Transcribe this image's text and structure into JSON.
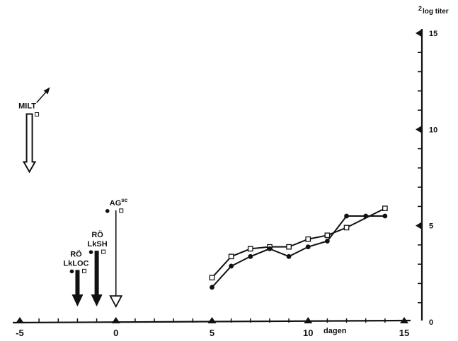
{
  "chart_data": {
    "type": "line",
    "title": "",
    "xlabel": "dagen",
    "ylabel_superscript": "2",
    "ylabel": "log titer",
    "xlim": [
      -5,
      15
    ],
    "ylim": [
      0,
      15
    ],
    "x_ticks": [
      -5,
      0,
      5,
      10,
      15
    ],
    "x_tick_labels": [
      "-5",
      "0",
      "5",
      "10",
      "15"
    ],
    "y_ticks": [
      0,
      5,
      10,
      15
    ],
    "y_tick_labels": [
      "0",
      "5",
      "10",
      "15"
    ],
    "grid": false,
    "series": [
      {
        "marker": "open-square",
        "x": [
          5,
          6,
          7,
          8,
          9,
          10,
          11,
          12,
          14
        ],
        "y": [
          2.3,
          3.4,
          3.8,
          3.9,
          3.9,
          4.3,
          4.5,
          4.9,
          5.9
        ]
      },
      {
        "marker": "filled-circle",
        "x": [
          5,
          6,
          7,
          8,
          9,
          10,
          11,
          12,
          13,
          14
        ],
        "y": [
          1.8,
          2.9,
          3.4,
          3.8,
          3.4,
          3.9,
          4.2,
          5.5,
          5.5,
          5.5
        ]
      }
    ],
    "annotations": [
      {
        "text": "MILT",
        "x": -4.5,
        "arrow": "open-down",
        "arrow_top": 10.8,
        "arrow_bottom": 7.8
      },
      {
        "text_lines": [
          "RÖ",
          "LkLOC"
        ],
        "x": -2,
        "arrow": "filled-down",
        "arrow_top": 2.7,
        "arrow_bottom": 0.8
      },
      {
        "text_lines": [
          "RÖ",
          "LkSH"
        ],
        "x": -1,
        "arrow": "filled-down",
        "arrow_top": 3.7,
        "arrow_bottom": 0.8
      },
      {
        "text": "AG",
        "superscript": "sc",
        "x": 0,
        "arrow": "open-down-thin",
        "arrow_top": 5.8,
        "arrow_bottom": 0.8
      }
    ]
  }
}
